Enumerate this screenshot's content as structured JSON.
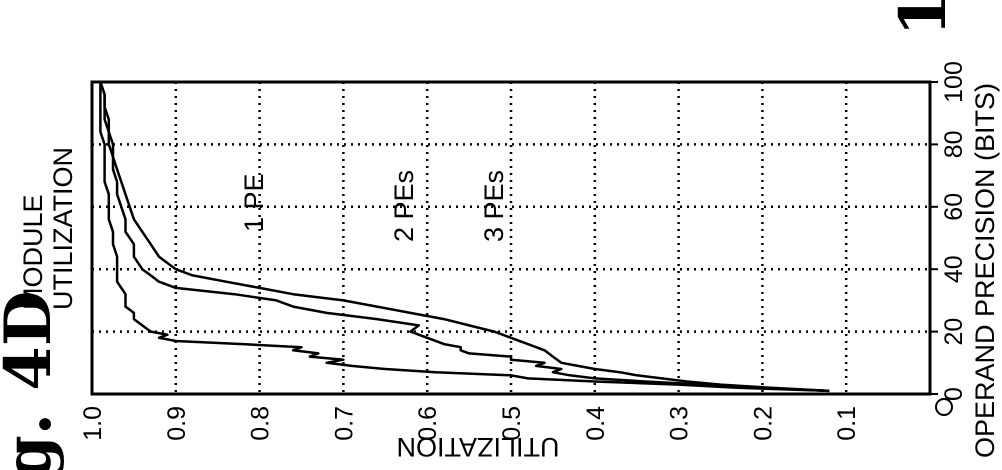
{
  "chart_data": {
    "type": "line",
    "title": "MODULE\nUTILIZATION",
    "title_lines": [
      "MODULE",
      "UTILIZATION"
    ],
    "xlabel": "OPERAND PRECISION (BITS)",
    "ylabel": "UTILIZATION",
    "figure_label_fragments": [
      "g. 4D",
      "1"
    ],
    "xlim": [
      0,
      100
    ],
    "ylim": [
      0,
      1.0
    ],
    "x_ticks": [
      "0",
      "20",
      "40",
      "60",
      "80",
      "100"
    ],
    "y_ticks": [
      "0",
      "0.1",
      "0.2",
      "0.3",
      "0.4",
      "0.5",
      "0.6",
      "0.7",
      "0.8",
      "0.9",
      "1.0"
    ],
    "grid": true,
    "orientation": "rotated 90 degrees counter-clockwise",
    "series": [
      {
        "name": "1 PE",
        "x": [
          1,
          2,
          3,
          4,
          5,
          6,
          7,
          8,
          9,
          10,
          11,
          12,
          13,
          14,
          15,
          16,
          17,
          18,
          19,
          20,
          22,
          24,
          26,
          28,
          30,
          32,
          36,
          40,
          44,
          48,
          52,
          56,
          60,
          64,
          68,
          72,
          76,
          80,
          84,
          88,
          92,
          96,
          100
        ],
        "y": [
          0.12,
          0.23,
          0.3,
          0.4,
          0.48,
          0.5,
          0.59,
          0.65,
          0.69,
          0.72,
          0.7,
          0.74,
          0.73,
          0.76,
          0.75,
          0.82,
          0.9,
          0.92,
          0.91,
          0.93,
          0.94,
          0.95,
          0.95,
          0.96,
          0.96,
          0.96,
          0.97,
          0.97,
          0.97,
          0.975,
          0.975,
          0.98,
          0.98,
          0.98,
          0.985,
          0.985,
          0.985,
          0.985,
          0.99,
          0.99,
          0.99,
          0.99,
          0.99
        ]
      },
      {
        "name": "2 PEs",
        "x": [
          1,
          2,
          3,
          4,
          5,
          6,
          7,
          8,
          9,
          10,
          11,
          12,
          13,
          14,
          15,
          16,
          18,
          20,
          22,
          24,
          26,
          28,
          30,
          32,
          34,
          36,
          38,
          40,
          44,
          48,
          52,
          56,
          60,
          64,
          68,
          72,
          76,
          80,
          84,
          88,
          92,
          96,
          100
        ],
        "y": [
          0.12,
          0.2,
          0.27,
          0.34,
          0.4,
          0.43,
          0.45,
          0.44,
          0.47,
          0.46,
          0.5,
          0.5,
          0.55,
          0.56,
          0.56,
          0.58,
          0.6,
          0.62,
          0.61,
          0.66,
          0.72,
          0.76,
          0.78,
          0.83,
          0.9,
          0.92,
          0.93,
          0.94,
          0.95,
          0.95,
          0.96,
          0.96,
          0.965,
          0.97,
          0.97,
          0.975,
          0.975,
          0.98,
          0.98,
          0.985,
          0.985,
          0.985,
          0.99
        ]
      },
      {
        "name": "3 PEs",
        "x": [
          1,
          2,
          3,
          4,
          5,
          6,
          7,
          8,
          9,
          10,
          12,
          14,
          16,
          18,
          20,
          22,
          24,
          26,
          28,
          30,
          32,
          34,
          36,
          38,
          40,
          44,
          48,
          52,
          56,
          60,
          64,
          68,
          72,
          76,
          80,
          84,
          88,
          92,
          96,
          100
        ],
        "y": [
          0.12,
          0.19,
          0.25,
          0.29,
          0.32,
          0.35,
          0.37,
          0.4,
          0.42,
          0.44,
          0.45,
          0.46,
          0.48,
          0.5,
          0.52,
          0.55,
          0.58,
          0.62,
          0.66,
          0.7,
          0.76,
          0.8,
          0.84,
          0.88,
          0.9,
          0.92,
          0.93,
          0.94,
          0.95,
          0.955,
          0.96,
          0.965,
          0.97,
          0.975,
          0.975,
          0.98,
          0.98,
          0.985,
          0.985,
          0.99
        ]
      }
    ]
  }
}
